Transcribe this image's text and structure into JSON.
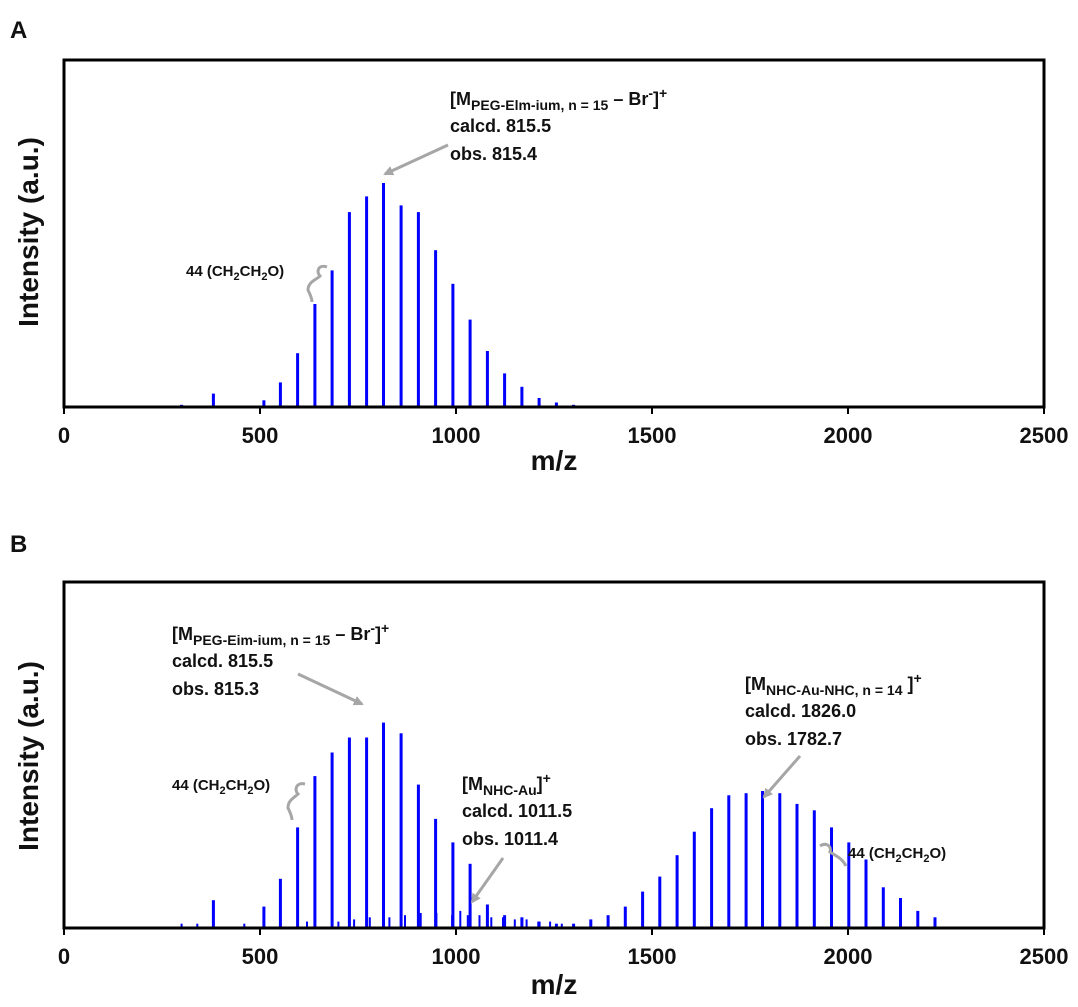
{
  "colors": {
    "peak": "#0000ff",
    "arrow": "#a6a6a6",
    "axis": "#000000"
  },
  "panels": [
    {
      "letter": "A"
    },
    {
      "letter": "B"
    }
  ],
  "chart_data": [
    {
      "type": "bar",
      "panel": "A",
      "xlabel": "m/z",
      "ylabel": "Intensity (a.u.)",
      "xlim": [
        0,
        2500
      ],
      "ylim": [
        0,
        100
      ],
      "xticks": [
        "0",
        "500",
        "1000",
        "1500",
        "2000",
        "2500"
      ],
      "series": [
        {
          "x": [
            300,
            381,
            510,
            552,
            596,
            640,
            684,
            728,
            772,
            815,
            860,
            904,
            948,
            992,
            1036,
            1080,
            1124,
            1168,
            1212,
            1256,
            1300
          ],
          "values": [
            1,
            6,
            3,
            11,
            24,
            46,
            61,
            87,
            94,
            100,
            90,
            87,
            70,
            55,
            39,
            25,
            15,
            9,
            4,
            2,
            1
          ]
        }
      ],
      "annotations": [
        {
          "id": "a1",
          "line1_main": "[M",
          "line1_sub": "PEG-Elm-ium, n = 15",
          "line1_dash": " – Br",
          "line1_sup": "-",
          "line1_close": "]",
          "line1_close_sup": "+",
          "line2": "calcd. 815.5",
          "line3": "obs. 815.4",
          "target_x": 815
        },
        {
          "id": "a2",
          "label_main": "44 (CH",
          "sub1": "2",
          "mid": "CH",
          "sub2": "2",
          "end": "O)",
          "target_x": 660
        }
      ]
    },
    {
      "type": "bar",
      "panel": "B",
      "xlabel": "m/z",
      "ylabel": "Intensity (a.u.)",
      "xlim": [
        0,
        2500
      ],
      "ylim": [
        0,
        100
      ],
      "xticks": [
        "0",
        "500",
        "1000",
        "1500",
        "2000",
        "2500"
      ],
      "series": [
        {
          "name": "major",
          "x": [
            381,
            510,
            552,
            596,
            640,
            684,
            728,
            772,
            815,
            860,
            904,
            948,
            992,
            1036,
            1080,
            1124,
            1168,
            1212,
            1256,
            1300,
            1344,
            1388,
            1432,
            1476,
            1520,
            1564,
            1608,
            1652,
            1696,
            1740,
            1782,
            1826,
            1870,
            1914,
            1958,
            2002,
            2046,
            2090,
            2134,
            2178,
            2222
          ],
          "values": [
            13,
            10,
            23,
            47,
            71,
            82,
            89,
            89,
            96,
            91,
            67,
            51,
            40,
            30,
            11,
            6,
            5,
            3,
            2,
            2,
            4,
            6,
            10,
            17,
            24,
            34,
            45,
            56,
            62,
            63,
            64,
            63,
            58,
            55,
            47,
            40,
            32,
            19,
            14,
            8,
            5
          ]
        },
        {
          "name": "minor",
          "x": [
            300,
            340,
            460,
            620,
            700,
            740,
            780,
            830,
            870,
            910,
            950,
            990,
            1011,
            1030,
            1060,
            1090,
            1120,
            1150,
            1180,
            1210,
            1240,
            1270
          ],
          "values": [
            2,
            2,
            2,
            3,
            3,
            4,
            5,
            5,
            6,
            7,
            7,
            6,
            8,
            6,
            6,
            5,
            5,
            4,
            4,
            3,
            3,
            2
          ]
        }
      ],
      "annotations": [
        {
          "id": "b1",
          "line1_main": "[M",
          "line1_sub": "PEG-Eim-ium, n = 15",
          "line1_dash": " – Br",
          "line1_sup": "-",
          "line1_close": "]",
          "line1_close_sup": "+",
          "line2": "calcd. 815.5",
          "line3": "obs. 815.3",
          "target_x": 775
        },
        {
          "id": "b2",
          "line1_main": "[M",
          "line1_sub": "NHC-Au",
          "line1_close": "]",
          "line1_close_sup": "+",
          "line2": "calcd. 1011.5",
          "line3": "obs. 1011.4",
          "target_x": 1011
        },
        {
          "id": "b3",
          "line1_main": "[M",
          "line1_sub": "NHC-Au-NHC, n = 14",
          "line1_close": " ]",
          "line1_close_sup": "+",
          "line2": "calcd. 1826.0",
          "line3": "obs. 1782.7",
          "target_x": 1782
        },
        {
          "id": "b4",
          "label_main": "44 (CH",
          "sub1": "2",
          "mid": "CH",
          "sub2": "2",
          "end": "O)",
          "target_x": 620
        },
        {
          "id": "b5",
          "label_main": "44 (CH",
          "sub1": "2",
          "mid": "CH",
          "sub2": "2",
          "end": "O)",
          "target_x": 1936
        }
      ]
    }
  ]
}
